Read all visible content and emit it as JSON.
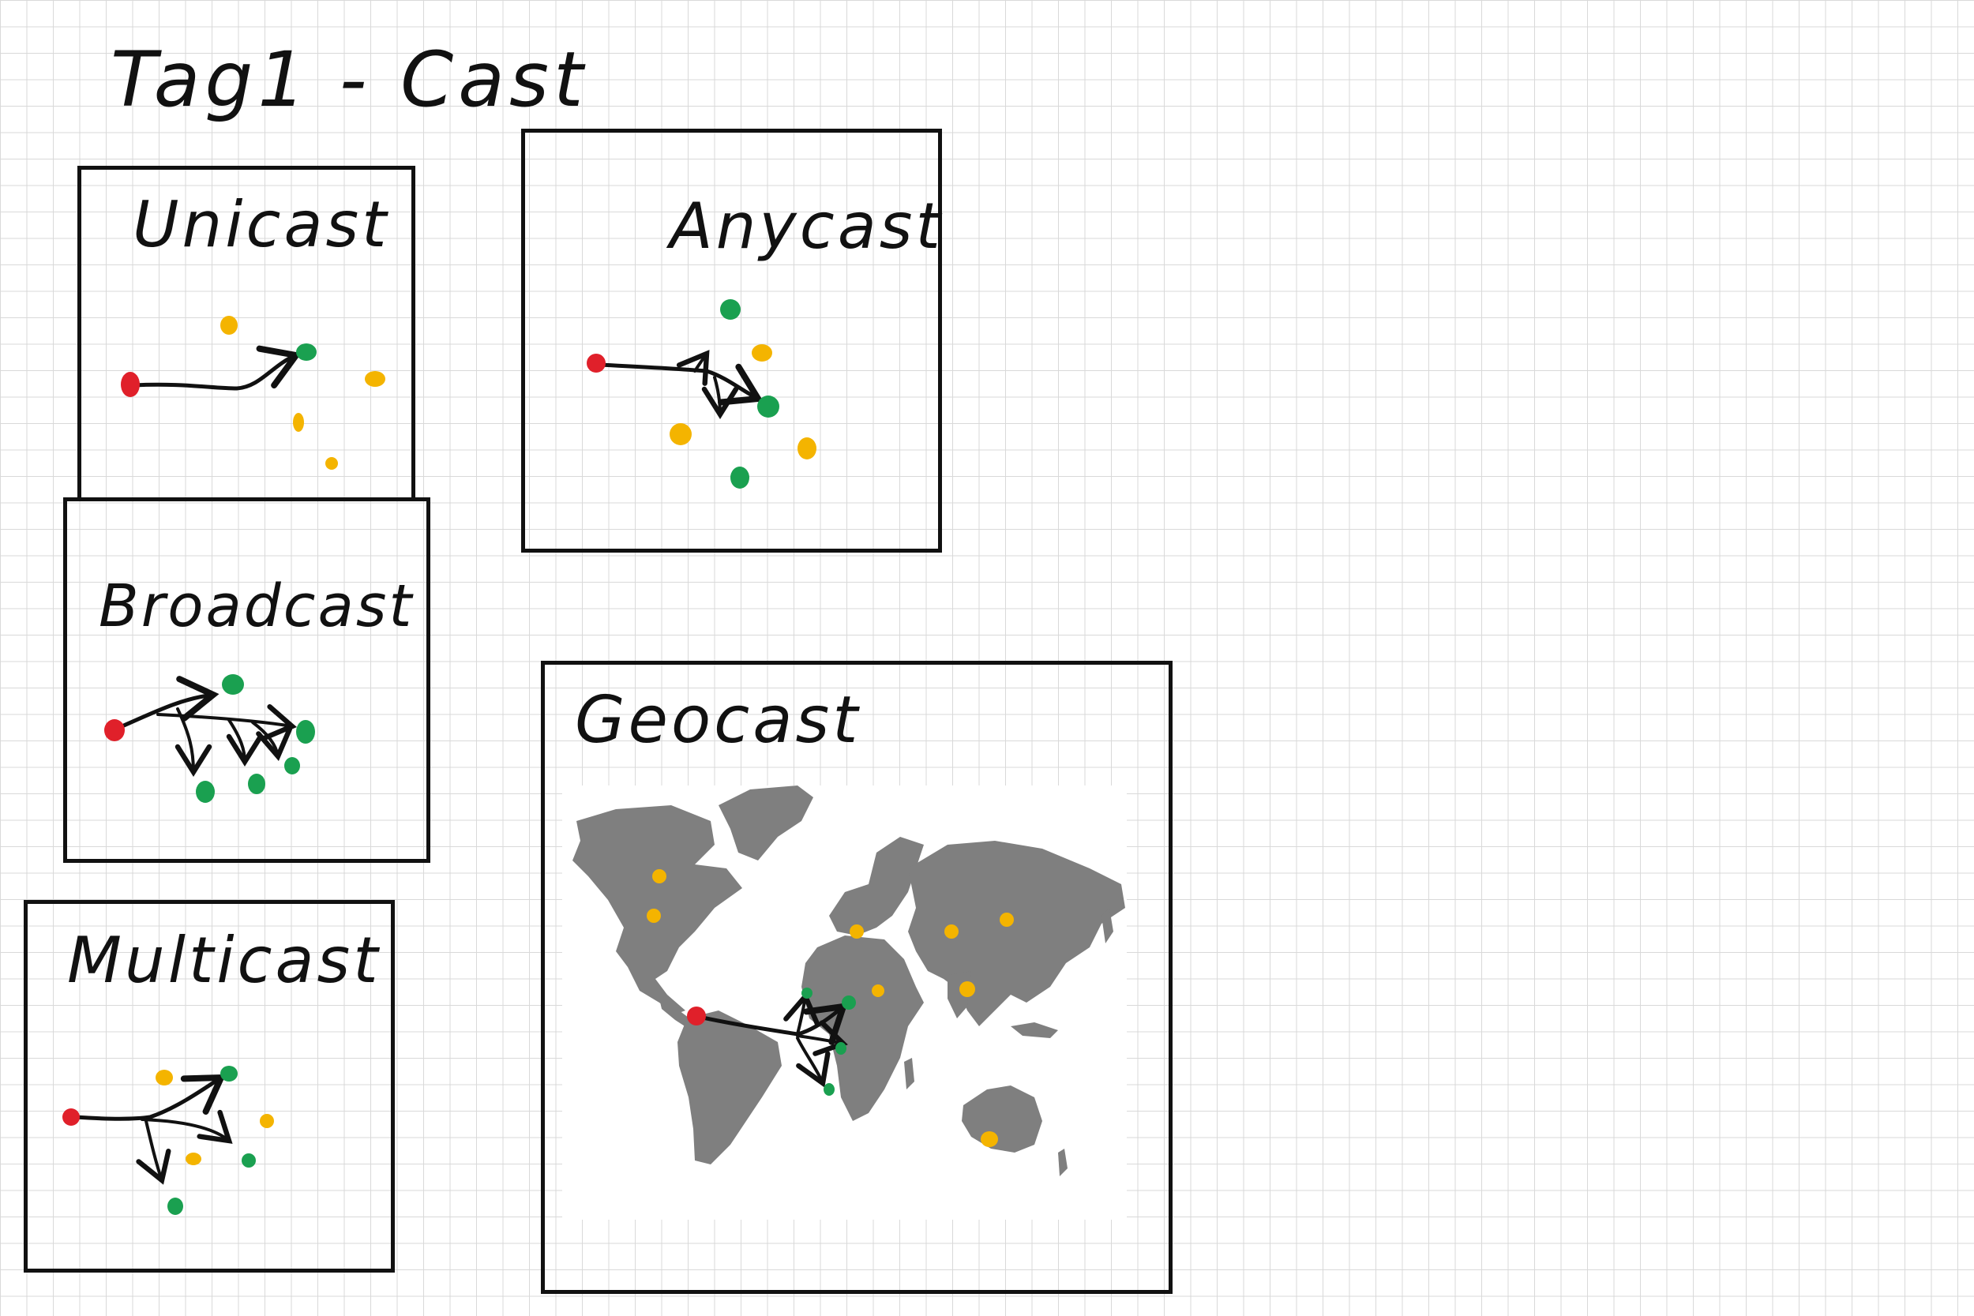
{
  "page_title": "Tag1 - Cast",
  "panels": {
    "unicast": {
      "label": "Unicast"
    },
    "anycast": {
      "label": "Anycast"
    },
    "broadcast": {
      "label": "Broadcast"
    },
    "multicast": {
      "label": "Multicast"
    },
    "geocast": {
      "label": "Geocast"
    }
  },
  "colors": {
    "sender": "#e0202a",
    "receiver": "#1aa050",
    "non_receiver": "#f4b400",
    "ink": "#111111",
    "land": "#7f7f7f",
    "grid": "#d9d9d9"
  }
}
